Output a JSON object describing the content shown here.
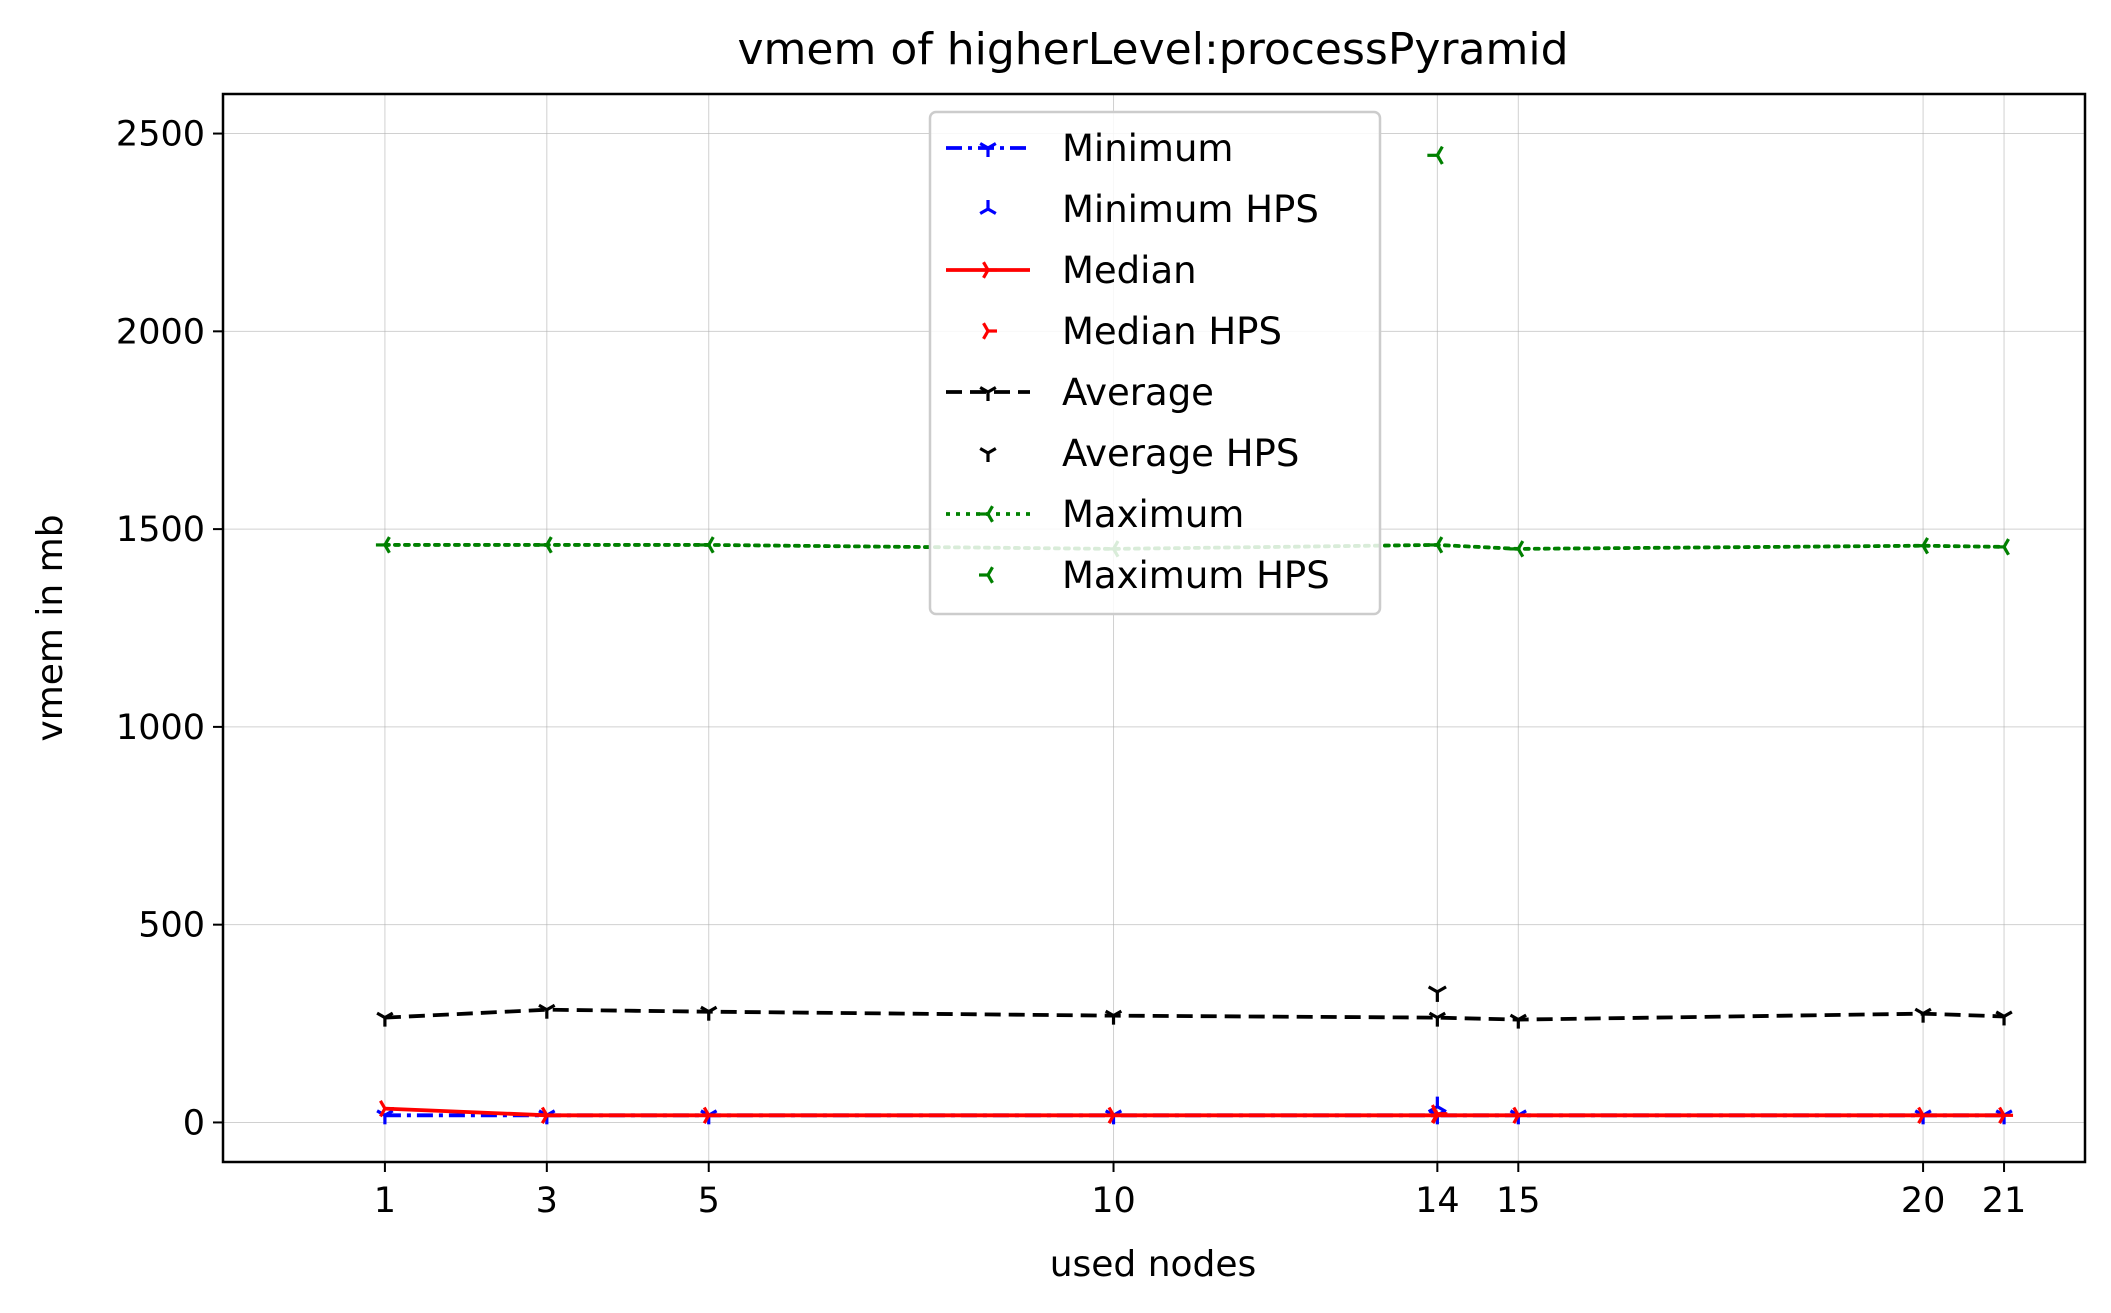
{
  "chart_data": {
    "type": "line",
    "title": "vmem of higherLevel:processPyramid",
    "xlabel": "used nodes",
    "ylabel": "vmem in mb",
    "x": [
      1,
      3,
      5,
      10,
      14,
      15,
      20,
      21
    ],
    "xticks": [
      "1",
      "3",
      "5",
      "10",
      "14",
      "15",
      "20",
      "21"
    ],
    "yticks": [
      0,
      500,
      1000,
      1500,
      2000,
      2500
    ],
    "xlim": [
      -1,
      22
    ],
    "ylim": [
      -100,
      2600
    ],
    "grid": true,
    "legend_position": "upper center",
    "series": [
      {
        "name": "Minimum",
        "color": "#0000ff",
        "style": "dashdot",
        "marker": "tri_down",
        "values": [
          18,
          18,
          18,
          18,
          18,
          18,
          18,
          18
        ]
      },
      {
        "name": "Minimum HPS",
        "color": "#0000ff",
        "style": "none",
        "marker": "tri_up",
        "points": [
          [
            14,
            40
          ]
        ]
      },
      {
        "name": "Median",
        "color": "#ff0000",
        "style": "solid",
        "marker": "tri_right",
        "values": [
          35,
          18,
          18,
          18,
          18,
          18,
          18,
          18
        ]
      },
      {
        "name": "Median HPS",
        "color": "#ff0000",
        "style": "none",
        "marker": "tri_right",
        "points": [
          [
            14,
            22
          ]
        ]
      },
      {
        "name": "Average",
        "color": "#000000",
        "style": "dashed",
        "marker": "tri_down",
        "values": [
          265,
          285,
          280,
          270,
          265,
          260,
          275,
          268
        ]
      },
      {
        "name": "Average HPS",
        "color": "#000000",
        "style": "none",
        "marker": "tri_down",
        "points": [
          [
            14,
            330
          ]
        ]
      },
      {
        "name": "Maximum",
        "color": "#008000",
        "style": "dotted",
        "marker": "tri_left",
        "values": [
          1460,
          1460,
          1460,
          1450,
          1460,
          1450,
          1458,
          1455
        ]
      },
      {
        "name": "Maximum HPS",
        "color": "#008000",
        "style": "none",
        "marker": "tri_left",
        "points": [
          [
            14,
            2445
          ]
        ]
      }
    ]
  }
}
